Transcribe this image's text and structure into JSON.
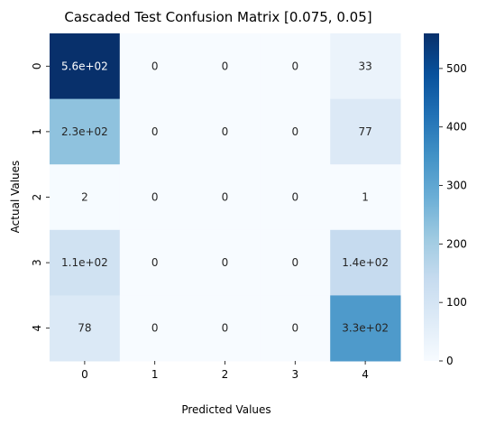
{
  "chart_data": {
    "type": "heatmap",
    "title": "Cascaded Test Confusion Matrix [0.075, 0.05]",
    "xlabel": "Predicted Values",
    "ylabel": "Actual Values",
    "x_categories": [
      "0",
      "1",
      "2",
      "3",
      "4"
    ],
    "y_categories": [
      "0",
      "1",
      "2",
      "3",
      "4"
    ],
    "values": [
      [
        560,
        0,
        0,
        0,
        33
      ],
      [
        230,
        0,
        0,
        0,
        77
      ],
      [
        2,
        0,
        0,
        0,
        1
      ],
      [
        110,
        0,
        0,
        0,
        140
      ],
      [
        78,
        0,
        0,
        0,
        330
      ]
    ],
    "labels": [
      [
        "5.6e+02",
        "0",
        "0",
        "0",
        "33"
      ],
      [
        "2.3e+02",
        "0",
        "0",
        "0",
        "77"
      ],
      [
        "2",
        "0",
        "0",
        "0",
        "1"
      ],
      [
        "1.1e+02",
        "0",
        "0",
        "0",
        "1.4e+02"
      ],
      [
        "78",
        "0",
        "0",
        "0",
        "3.3e+02"
      ]
    ],
    "colormap": "Blues",
    "colorbar": {
      "range": [
        0,
        560
      ],
      "ticks": [
        0,
        100,
        200,
        300,
        400,
        500
      ]
    }
  }
}
